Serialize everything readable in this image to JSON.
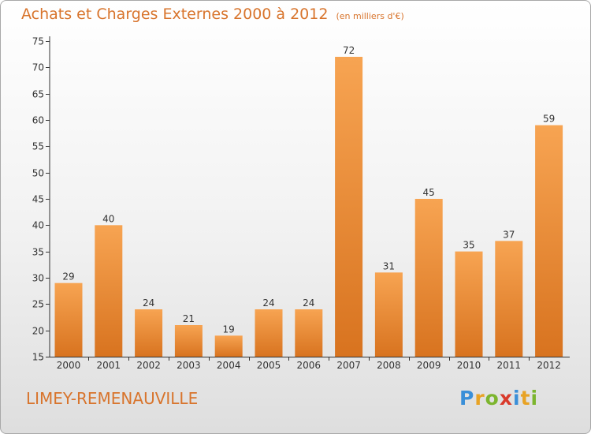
{
  "header": {
    "title": "Achats et Charges Externes 2000 à 2012",
    "subtitle": "(en milliers d'€)"
  },
  "footer": {
    "commune": "LIMEY-REMENAUVILLE",
    "logo_letters": [
      "P",
      "r",
      "o",
      "x",
      "i",
      "t",
      "i"
    ]
  },
  "colors": {
    "bar_top": "#f7a452",
    "bar_bottom": "#d8731f",
    "title": "#d8742c",
    "axis": "#333333"
  },
  "chart_data": {
    "type": "bar",
    "categories": [
      "2000",
      "2001",
      "2002",
      "2003",
      "2004",
      "2005",
      "2006",
      "2007",
      "2008",
      "2009",
      "2010",
      "2011",
      "2012"
    ],
    "values": [
      29,
      40,
      24,
      21,
      19,
      24,
      24,
      72,
      31,
      45,
      35,
      37,
      59
    ],
    "data_labels": [
      "29",
      "40",
      "24",
      "21",
      "19",
      "24",
      "24",
      "72",
      "31",
      "45",
      "35",
      "37",
      "59"
    ],
    "ylim": [
      15,
      75
    ],
    "yticks": [
      15,
      20,
      25,
      30,
      35,
      40,
      45,
      50,
      55,
      60,
      65,
      70,
      75
    ],
    "grid": false,
    "legend": "none"
  }
}
